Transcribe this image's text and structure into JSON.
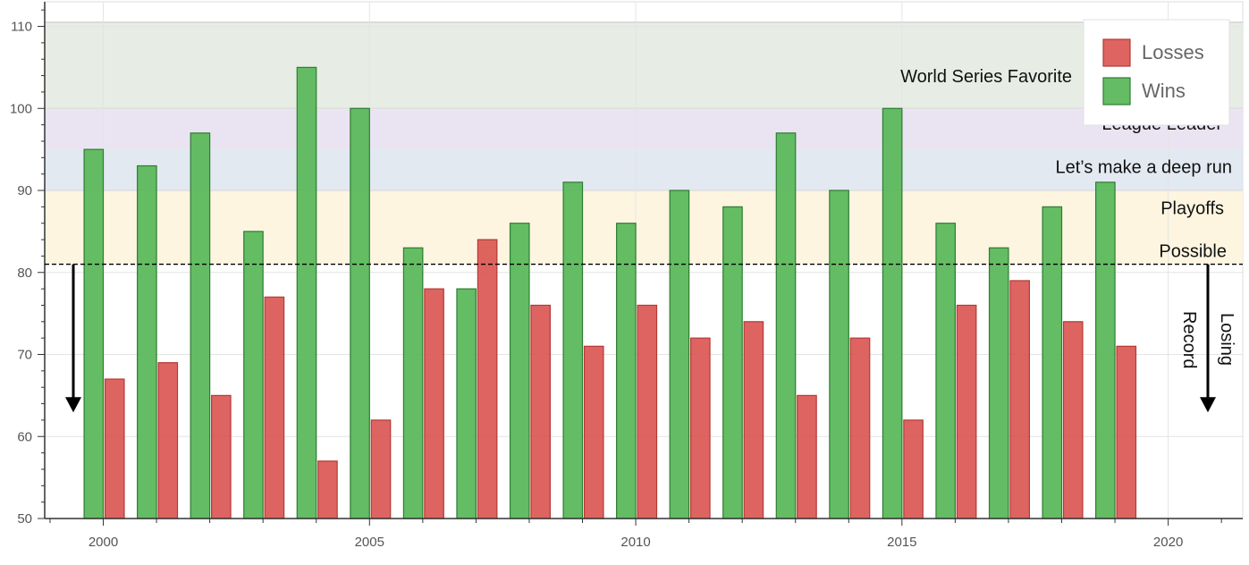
{
  "chart_data": {
    "type": "bar",
    "x": [
      2000,
      2001,
      2002,
      2003,
      2004,
      2005,
      2006,
      2007,
      2008,
      2009,
      2010,
      2011,
      2012,
      2013,
      2014,
      2015,
      2016,
      2017,
      2018,
      2019
    ],
    "series": [
      {
        "name": "Wins",
        "color": "#5cb85c",
        "values": [
          95,
          93,
          97,
          85,
          105,
          100,
          83,
          78,
          86,
          91,
          86,
          90,
          88,
          97,
          90,
          100,
          86,
          83,
          88,
          91
        ]
      },
      {
        "name": "Losses",
        "color": "#d9534f",
        "values": [
          67,
          69,
          65,
          77,
          57,
          62,
          78,
          84,
          76,
          71,
          76,
          72,
          74,
          65,
          72,
          62,
          76,
          79,
          74,
          71
        ]
      }
    ],
    "xlim": [
      1998.9,
      2021.4
    ],
    "ylim": [
      50,
      113
    ],
    "x_ticks": [
      2000,
      2005,
      2010,
      2015,
      2020
    ],
    "y_ticks": [
      50,
      60,
      70,
      80,
      90,
      100,
      110
    ],
    "grid": true,
    "legend_position": "top-right",
    "legend_order": [
      "Losses",
      "Wins"
    ],
    "bands": [
      {
        "from": 100,
        "to": 110.5,
        "color": "#e3eadf",
        "label": "World Series Favorite"
      },
      {
        "from": 95,
        "to": 100,
        "color": "#e6dff0",
        "label": "League Leader"
      },
      {
        "from": 90,
        "to": 95,
        "color": "#dde5ef",
        "label": "Let’s make a deep run"
      },
      {
        "from": 81,
        "to": 90,
        "color": "#fdf3da",
        "label_lines": [
          "Playoffs",
          "Possible"
        ]
      }
    ],
    "threshold": {
      "value": 81,
      "style": "dashed"
    },
    "losing_label_lines": [
      "Losing",
      "Record"
    ]
  }
}
